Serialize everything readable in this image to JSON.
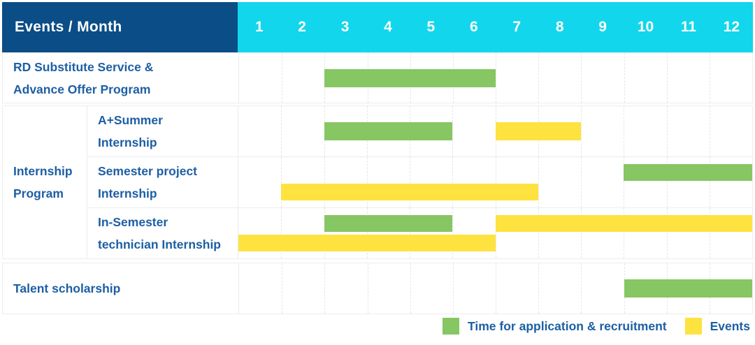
{
  "header": {
    "title": "Events / Month",
    "months": [
      "1",
      "2",
      "3",
      "4",
      "5",
      "6",
      "7",
      "8",
      "9",
      "10",
      "11",
      "12"
    ]
  },
  "colors": {
    "header_bg": "#0b4d86",
    "months_bg": "#12d6ec",
    "label_text": "#1d5fa4",
    "green": "#86c663",
    "yellow": "#fee23f",
    "grid": "#ececec"
  },
  "legend": {
    "items": [
      {
        "color_key": "green",
        "label": "Time for application & recruitment"
      },
      {
        "color_key": "yellow",
        "label": "Events"
      }
    ]
  },
  "chart_data": {
    "type": "gantt",
    "title": "Events / Month",
    "x_axis": {
      "unit": "month",
      "ticks": [
        1,
        2,
        3,
        4,
        5,
        6,
        7,
        8,
        9,
        10,
        11,
        12
      ],
      "range": [
        1,
        12
      ]
    },
    "bar_meaning": {
      "green": "Time for application & recruitment",
      "yellow": "Events"
    },
    "group_label": "Internship Program",
    "group_label_lines": [
      "Internship",
      "Program"
    ],
    "rows": [
      {
        "group": "",
        "label": "RD Substitute Service & Advance Offer Program",
        "label_lines": [
          "RD Substitute Service &",
          "Advance Offer Program"
        ],
        "bars": [
          {
            "type": "green",
            "start": 3,
            "end": 6,
            "lane": "center"
          }
        ]
      },
      {
        "group": "Internship Program",
        "label": "A+Summer Internship",
        "label_lines": [
          "A+Summer",
          "Internship"
        ],
        "bars": [
          {
            "type": "green",
            "start": 3,
            "end": 5,
            "lane": "center"
          },
          {
            "type": "yellow",
            "start": 7,
            "end": 8,
            "lane": "center"
          }
        ]
      },
      {
        "group": "Internship Program",
        "label": "Semester project Internship",
        "label_lines": [
          "Semester project",
          "Internship"
        ],
        "bars": [
          {
            "type": "green",
            "start": 10,
            "end": 12,
            "lane": "top"
          },
          {
            "type": "yellow",
            "start": 2,
            "end": 7,
            "lane": "bottom"
          }
        ]
      },
      {
        "group": "Internship Program",
        "label": "In-Semester technician Internship",
        "label_lines": [
          "In-Semester",
          "technician Internship"
        ],
        "bars": [
          {
            "type": "green",
            "start": 3,
            "end": 5,
            "lane": "top"
          },
          {
            "type": "yellow",
            "start": 7,
            "end": 12,
            "lane": "top"
          },
          {
            "type": "yellow",
            "start": 1,
            "end": 6,
            "lane": "bottom"
          }
        ]
      },
      {
        "group": "",
        "label": "Talent scholarship",
        "label_lines": [
          "Talent scholarship"
        ],
        "bars": [
          {
            "type": "green",
            "start": 10,
            "end": 12,
            "lane": "center"
          }
        ]
      }
    ]
  }
}
